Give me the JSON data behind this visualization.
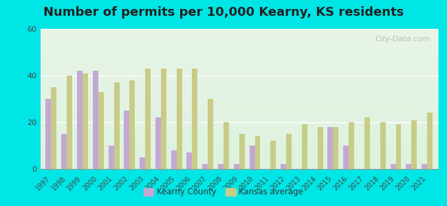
{
  "title": "Number of permits per 10,000 Kearny, KS residents",
  "years": [
    1997,
    1998,
    1999,
    2000,
    2001,
    2002,
    2003,
    2004,
    2005,
    2006,
    2007,
    2008,
    2009,
    2010,
    2011,
    2012,
    2013,
    2014,
    2015,
    2016,
    2017,
    2018,
    2019,
    2020,
    2021
  ],
  "kearny": [
    30,
    15,
    42,
    42,
    10,
    25,
    5,
    22,
    8,
    7,
    2,
    2,
    2,
    10,
    0,
    2,
    0,
    0,
    18,
    10,
    0,
    0,
    2,
    2,
    2
  ],
  "kansas": [
    35,
    40,
    41,
    33,
    37,
    38,
    43,
    43,
    43,
    43,
    30,
    20,
    15,
    14,
    12,
    15,
    19,
    18,
    18,
    20,
    22,
    20,
    19,
    21,
    24
  ],
  "kearny_color": "#c4a8d4",
  "kansas_color": "#c8cc88",
  "bg_color": "#00e5e5",
  "plot_bg_color": "#e8f5e8",
  "ylim": [
    0,
    60
  ],
  "yticks": [
    0,
    20,
    40,
    60
  ],
  "title_fontsize": 13,
  "bar_width": 0.35,
  "legend_kearny": "Kearny County",
  "legend_kansas": "Kansas average",
  "watermark": "City-Data.com"
}
